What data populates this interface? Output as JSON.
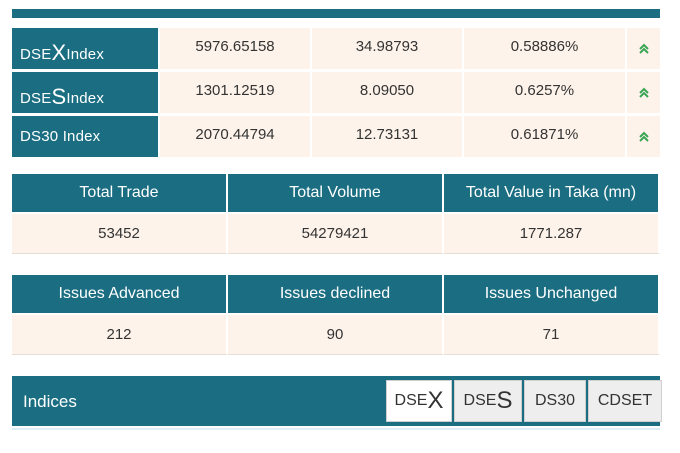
{
  "indices": [
    {
      "prefix": "DSE",
      "letter": "X",
      "suffix": " Index",
      "value": "5976.65158",
      "change": "34.98793",
      "percent": "0.58886%",
      "trend_icon": "double-chevron-up"
    },
    {
      "prefix": "DSE",
      "letter": "S",
      "suffix": " Index",
      "value": "1301.12519",
      "change": "8.09050",
      "percent": "0.6257%",
      "trend_icon": "double-chevron-up"
    },
    {
      "name": "DS30 Index",
      "value": "2070.44794",
      "change": "12.73131",
      "percent": "0.61871%",
      "trend_icon": "double-chevron-up"
    }
  ],
  "trade_stats": {
    "headers": [
      "Total Trade",
      "Total Volume",
      "Total Value in Taka (mn)"
    ],
    "values": [
      "53452",
      "54279421",
      "1771.287"
    ]
  },
  "issue_stats": {
    "headers": [
      "Issues Advanced",
      "Issues declined",
      "Issues Unchanged"
    ],
    "values": [
      "212",
      "90",
      "71"
    ]
  },
  "indices_panel": {
    "title": "Indices",
    "tabs": [
      {
        "prefix": "DSE",
        "letter": "X"
      },
      {
        "prefix": "DSE",
        "letter": "S"
      },
      {
        "label": "DS30"
      },
      {
        "label": "CDSET"
      }
    ]
  },
  "colors": {
    "header_bg": "#1b6e82",
    "cell_bg": "#fdf3ea",
    "up_green": "#3aa655"
  }
}
